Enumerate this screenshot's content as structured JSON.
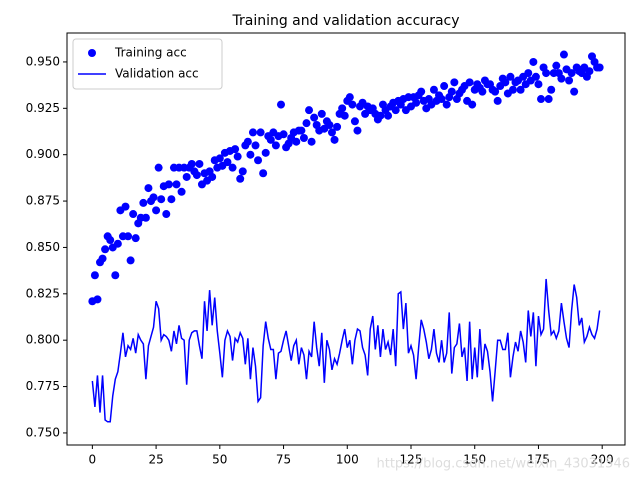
{
  "chart_data": {
    "type": "line",
    "title": "Training and validation accuracy",
    "x": [
      0,
      1,
      2,
      3,
      4,
      5,
      6,
      7,
      8,
      9,
      10,
      11,
      12,
      13,
      14,
      15,
      16,
      17,
      18,
      19,
      20,
      21,
      22,
      23,
      24,
      25,
      26,
      27,
      28,
      29,
      30,
      31,
      32,
      33,
      34,
      35,
      36,
      37,
      38,
      39,
      40,
      41,
      42,
      43,
      44,
      45,
      46,
      47,
      48,
      49,
      50,
      51,
      52,
      53,
      54,
      55,
      56,
      57,
      58,
      59,
      60,
      61,
      62,
      63,
      64,
      65,
      66,
      67,
      68,
      69,
      70,
      71,
      72,
      73,
      74,
      75,
      76,
      77,
      78,
      79,
      80,
      81,
      82,
      83,
      84,
      85,
      86,
      87,
      88,
      89,
      90,
      91,
      92,
      93,
      94,
      95,
      96,
      97,
      98,
      99,
      100,
      101,
      102,
      103,
      104,
      105,
      106,
      107,
      108,
      109,
      110,
      111,
      112,
      113,
      114,
      115,
      116,
      117,
      118,
      119,
      120,
      121,
      122,
      123,
      124,
      125,
      126,
      127,
      128,
      129,
      130,
      131,
      132,
      133,
      134,
      135,
      136,
      137,
      138,
      139,
      140,
      141,
      142,
      143,
      144,
      145,
      146,
      147,
      148,
      149,
      150,
      151,
      152,
      153,
      154,
      155,
      156,
      157,
      158,
      159,
      160,
      161,
      162,
      163,
      164,
      165,
      166,
      167,
      168,
      169,
      170,
      171,
      172,
      173,
      174,
      175,
      176,
      177,
      178,
      179,
      180,
      181,
      182,
      183,
      184,
      185,
      186,
      187,
      188,
      189,
      190,
      191,
      192,
      193,
      194,
      195,
      196,
      197,
      198,
      199
    ],
    "series": [
      {
        "name": "Training acc",
        "type": "scatter",
        "color": "#0000ff",
        "values": [
          0.821,
          0.835,
          0.822,
          0.842,
          0.844,
          0.849,
          0.856,
          0.854,
          0.85,
          0.835,
          0.852,
          0.87,
          0.856,
          0.872,
          0.856,
          0.843,
          0.868,
          0.855,
          0.863,
          0.866,
          0.874,
          0.866,
          0.882,
          0.875,
          0.877,
          0.87,
          0.893,
          0.876,
          0.883,
          0.868,
          0.884,
          0.876,
          0.893,
          0.884,
          0.893,
          0.88,
          0.893,
          0.888,
          0.893,
          0.895,
          0.891,
          0.889,
          0.895,
          0.884,
          0.89,
          0.886,
          0.891,
          0.888,
          0.897,
          0.893,
          0.898,
          0.894,
          0.901,
          0.896,
          0.902,
          0.893,
          0.903,
          0.899,
          0.887,
          0.891,
          0.905,
          0.907,
          0.9,
          0.912,
          0.905,
          0.897,
          0.912,
          0.89,
          0.901,
          0.91,
          0.908,
          0.912,
          0.905,
          0.91,
          0.927,
          0.911,
          0.904,
          0.906,
          0.909,
          0.912,
          0.907,
          0.913,
          0.913,
          0.909,
          0.917,
          0.924,
          0.907,
          0.92,
          0.916,
          0.913,
          0.922,
          0.914,
          0.918,
          0.916,
          0.912,
          0.908,
          0.915,
          0.922,
          0.925,
          0.921,
          0.929,
          0.931,
          0.927,
          0.918,
          0.913,
          0.926,
          0.928,
          0.922,
          0.926,
          0.924,
          0.925,
          0.922,
          0.919,
          0.921,
          0.927,
          0.924,
          0.921,
          0.926,
          0.928,
          0.924,
          0.929,
          0.927,
          0.93,
          0.924,
          0.931,
          0.926,
          0.931,
          0.928,
          0.932,
          0.934,
          0.929,
          0.925,
          0.93,
          0.927,
          0.935,
          0.929,
          0.932,
          0.93,
          0.937,
          0.927,
          0.931,
          0.934,
          0.939,
          0.93,
          0.933,
          0.935,
          0.937,
          0.929,
          0.939,
          0.927,
          0.935,
          0.938,
          0.936,
          0.934,
          0.94,
          0.938,
          0.938,
          0.935,
          0.934,
          0.929,
          0.937,
          0.941,
          0.939,
          0.933,
          0.942,
          0.935,
          0.939,
          0.94,
          0.935,
          0.942,
          0.938,
          0.944,
          0.94,
          0.95,
          0.942,
          0.938,
          0.93,
          0.947,
          0.944,
          0.93,
          0.935,
          0.944,
          0.948,
          0.944,
          0.941,
          0.954,
          0.946,
          0.94,
          0.944,
          0.934,
          0.947,
          0.945,
          0.944,
          0.947,
          0.942,
          0.945,
          0.953,
          0.95,
          0.947,
          0.947
        ]
      },
      {
        "name": "Validation acc",
        "type": "line",
        "color": "#0000ff",
        "values": [
          0.778,
          0.764,
          0.781,
          0.761,
          0.781,
          0.757,
          0.756,
          0.756,
          0.77,
          0.779,
          0.783,
          0.793,
          0.804,
          0.791,
          0.797,
          0.795,
          0.801,
          0.793,
          0.803,
          0.8,
          0.798,
          0.779,
          0.797,
          0.802,
          0.807,
          0.821,
          0.817,
          0.8,
          0.803,
          0.802,
          0.8,
          0.794,
          0.805,
          0.798,
          0.808,
          0.801,
          0.8,
          0.776,
          0.8,
          0.804,
          0.805,
          0.805,
          0.797,
          0.79,
          0.821,
          0.805,
          0.827,
          0.808,
          0.823,
          0.805,
          0.793,
          0.78,
          0.8,
          0.805,
          0.802,
          0.789,
          0.801,
          0.799,
          0.804,
          0.801,
          0.787,
          0.801,
          0.779,
          0.796,
          0.786,
          0.767,
          0.769,
          0.797,
          0.81,
          0.801,
          0.795,
          0.795,
          0.779,
          0.793,
          0.794,
          0.8,
          0.805,
          0.797,
          0.789,
          0.797,
          0.8,
          0.787,
          0.796,
          0.792,
          0.779,
          0.794,
          0.791,
          0.81,
          0.796,
          0.786,
          0.804,
          0.777,
          0.8,
          0.795,
          0.784,
          0.79,
          0.787,
          0.793,
          0.8,
          0.806,
          0.796,
          0.8,
          0.787,
          0.8,
          0.806,
          0.805,
          0.796,
          0.792,
          0.781,
          0.806,
          0.813,
          0.795,
          0.808,
          0.791,
          0.806,
          0.795,
          0.799,
          0.792,
          0.806,
          0.786,
          0.825,
          0.826,
          0.806,
          0.82,
          0.793,
          0.797,
          0.792,
          0.779,
          0.796,
          0.811,
          0.806,
          0.799,
          0.79,
          0.795,
          0.806,
          0.793,
          0.788,
          0.8,
          0.788,
          0.793,
          0.815,
          0.782,
          0.796,
          0.798,
          0.809,
          0.791,
          0.796,
          0.778,
          0.81,
          0.779,
          0.796,
          0.78,
          0.806,
          0.784,
          0.798,
          0.794,
          0.783,
          0.767,
          0.783,
          0.8,
          0.8,
          0.795,
          0.795,
          0.804,
          0.78,
          0.791,
          0.799,
          0.794,
          0.805,
          0.799,
          0.788,
          0.816,
          0.802,
          0.815,
          0.786,
          0.813,
          0.803,
          0.806,
          0.833,
          0.816,
          0.803,
          0.805,
          0.801,
          0.805,
          0.82,
          0.81,
          0.801,
          0.796,
          0.816,
          0.83,
          0.823,
          0.808,
          0.812,
          0.799,
          0.802,
          0.807,
          0.803,
          0.801,
          0.806,
          0.816
        ]
      }
    ],
    "xlim": [
      -9.95,
      208.95
    ],
    "xticks": [
      0,
      25,
      50,
      75,
      100,
      125,
      150,
      175,
      200
    ],
    "ylim": [
      0.7435,
      0.9656
    ],
    "yticks": [
      {
        "value": 0.75,
        "label": "0.750"
      },
      {
        "value": 0.775,
        "label": "0.775"
      },
      {
        "value": 0.8,
        "label": "0.800"
      },
      {
        "value": 0.825,
        "label": "0.825"
      },
      {
        "value": 0.85,
        "label": "0.850"
      },
      {
        "value": 0.875,
        "label": "0.875"
      },
      {
        "value": 0.9,
        "label": "0.900"
      },
      {
        "value": 0.925,
        "label": "0.925"
      },
      {
        "value": 0.95,
        "label": "0.950"
      }
    ],
    "legend": "upper left",
    "watermark": "https://blog.csdn.net/weixin_43031546"
  }
}
